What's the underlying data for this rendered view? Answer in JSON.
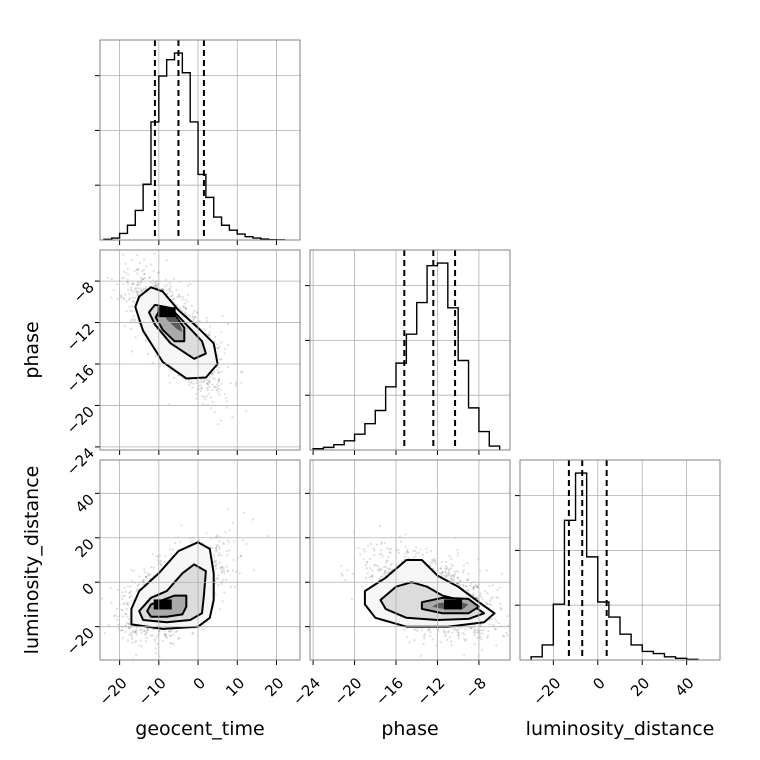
{
  "chart_data": {
    "type": "corner",
    "parameters": [
      {
        "name": "geocent_time",
        "range": [
          -25,
          26
        ],
        "ticks": [
          -20,
          -10,
          0,
          10,
          20
        ],
        "ticklabels": [
          "−20",
          "−10",
          "0",
          "10",
          "20"
        ]
      },
      {
        "name": "phase",
        "range": [
          -24.3,
          -5.0
        ],
        "ticks": [
          -24,
          -20,
          -16,
          -12,
          -8
        ],
        "ticklabels": [
          "−24",
          "−20",
          "−16",
          "−12",
          "−8"
        ]
      },
      {
        "name": "luminosity_distance",
        "range": [
          -35,
          55
        ],
        "ticks": [
          -20,
          0,
          20,
          40
        ],
        "ticklabels": [
          "−20",
          "0",
          "20",
          "40"
        ]
      }
    ],
    "axis_labels": {
      "x": [
        "geocent_time",
        "phase",
        "luminosity_distance"
      ],
      "y": [
        "phase",
        "luminosity_distance"
      ]
    },
    "grid": true,
    "quantiles": [
      0.16,
      0.5,
      0.84
    ],
    "histograms": [
      {
        "parameter": "geocent_time",
        "bin_edges": [
          -24,
          -22,
          -20,
          -18,
          -16,
          -14,
          -12,
          -10,
          -8,
          -6,
          -4,
          -2,
          0,
          2,
          4,
          6,
          8,
          10,
          12,
          14,
          16,
          18,
          20,
          22
        ],
        "counts": [
          0.2,
          0.6,
          2.0,
          4.5,
          9.0,
          17.0,
          36.0,
          50.0,
          55.0,
          57.0,
          51.0,
          36.0,
          20.0,
          13.0,
          7.0,
          4.5,
          3.0,
          1.8,
          1.0,
          0.6,
          0.3,
          0.1,
          0.05
        ],
        "quantile_values": [
          -11,
          -5,
          1.5
        ]
      },
      {
        "parameter": "phase",
        "bin_edges": [
          -24,
          -23,
          -22,
          -21,
          -20,
          -19,
          -18,
          -17,
          -16,
          -15,
          -14,
          -13,
          -12,
          -11,
          -10,
          -9,
          -8,
          -7,
          -6
        ],
        "counts": [
          0.5,
          1.0,
          2.0,
          3.5,
          6.0,
          10.0,
          15.0,
          24.0,
          33.0,
          44.0,
          56.0,
          70.0,
          71.0,
          54.0,
          34.0,
          16.0,
          7.0,
          1.5
        ],
        "quantile_values": [
          -15.2,
          -12.4,
          -10.3
        ]
      },
      {
        "parameter": "luminosity_distance",
        "bin_edges": [
          -30,
          -25,
          -20,
          -15,
          -10,
          -5,
          0,
          5,
          10,
          15,
          20,
          25,
          30,
          35,
          40,
          45
        ],
        "counts": [
          1.5,
          7.0,
          26.0,
          65.0,
          87.0,
          48.0,
          27.0,
          20.0,
          12.0,
          7.0,
          4.0,
          3.0,
          1.5,
          0.8,
          0.3
        ],
        "quantile_values": [
          -13,
          -7,
          4
        ]
      }
    ],
    "pairs": [
      {
        "x": "geocent_time",
        "y": "phase",
        "mean": [
          -6,
          -12.8
        ],
        "sd": [
          5.5,
          2.6
        ],
        "corr": -0.7,
        "peak": [
          -8,
          -11
        ],
        "contours": [
          [
            [
              -15,
              -9.5
            ],
            [
              -12,
              -8.6
            ],
            [
              -9,
              -9.0
            ],
            [
              -5,
              -10.8
            ],
            [
              0,
              -12.5
            ],
            [
              4,
              -14.0
            ],
            [
              5,
              -16.0
            ],
            [
              2,
              -17.3
            ],
            [
              -3,
              -17.4
            ],
            [
              -9,
              -15.8
            ],
            [
              -14,
              -12.8
            ],
            [
              -16,
              -10.5
            ]
          ],
          [
            [
              -11,
              -10.3
            ],
            [
              -7,
              -10.6
            ],
            [
              -3,
              -12.2
            ],
            [
              1,
              -13.8
            ],
            [
              2,
              -15.0
            ],
            [
              -1,
              -15.5
            ],
            [
              -7,
              -14.0
            ],
            [
              -11,
              -12.2
            ],
            [
              -12.5,
              -11.0
            ]
          ],
          [
            [
              -9.5,
              -10.6
            ],
            [
              -6.5,
              -11.0
            ],
            [
              -3.5,
              -12.5
            ],
            [
              -3.5,
              -13.8
            ],
            [
              -6,
              -13.8
            ],
            [
              -9,
              -12.7
            ],
            [
              -10.8,
              -11.5
            ]
          ],
          [
            [
              -9,
              -10.9
            ],
            [
              -7,
              -11.0
            ],
            [
              -5,
              -11.8
            ],
            [
              -4,
              -12.9
            ],
            [
              -5.5,
              -12.6
            ],
            [
              -8,
              -11.7
            ]
          ]
        ]
      },
      {
        "x": "geocent_time",
        "y": "luminosity_distance",
        "mean": [
          -6,
          -6
        ],
        "sd": [
          6.0,
          9.0
        ],
        "corr": 0.45,
        "peak": [
          -9,
          -10
        ],
        "contours": [
          [
            [
              -17,
              -12
            ],
            [
              -17,
              -19
            ],
            [
              -9,
              -21
            ],
            [
              0,
              -20
            ],
            [
              3,
              -16
            ],
            [
              4,
              -8
            ],
            [
              4,
              4
            ],
            [
              3,
              15
            ],
            [
              0,
              18
            ],
            [
              -5,
              14
            ],
            [
              -10,
              4
            ],
            [
              -15,
              -4
            ]
          ],
          [
            [
              -15,
              -13
            ],
            [
              -14,
              -17
            ],
            [
              -8,
              -18
            ],
            [
              -2,
              -17
            ],
            [
              1,
              -14
            ],
            [
              1.5,
              -6
            ],
            [
              2,
              5
            ],
            [
              -1,
              8
            ],
            [
              -4,
              4
            ],
            [
              -8,
              -4
            ],
            [
              -12,
              -7
            ]
          ],
          [
            [
              -13,
              -13
            ],
            [
              -12,
              -15.5
            ],
            [
              -8,
              -15.5
            ],
            [
              -4,
              -14.5
            ],
            [
              -3,
              -11
            ],
            [
              -3,
              -6
            ],
            [
              -6,
              -6
            ],
            [
              -9,
              -8
            ],
            [
              -12,
              -10
            ]
          ],
          [
            [
              -11,
              -12
            ],
            [
              -9,
              -12
            ],
            [
              -7,
              -11
            ],
            [
              -7.5,
              -9
            ],
            [
              -9.5,
              -9
            ],
            [
              -11,
              -10
            ]
          ]
        ]
      },
      {
        "x": "phase",
        "y": "luminosity_distance",
        "mean": [
          -12.5,
          -6
        ],
        "sd": [
          2.8,
          9.0
        ],
        "corr": -0.45,
        "peak": [
          -10.5,
          -10
        ],
        "contours": [
          [
            [
              -19,
              -10
            ],
            [
              -19,
              -4
            ],
            [
              -17,
              2
            ],
            [
              -15,
              10
            ],
            [
              -13.5,
              10
            ],
            [
              -12,
              3
            ],
            [
              -10,
              -2
            ],
            [
              -8,
              -9
            ],
            [
              -6.5,
              -14
            ],
            [
              -7.5,
              -18
            ],
            [
              -11,
              -20
            ],
            [
              -15,
              -20
            ],
            [
              -18,
              -16
            ]
          ],
          [
            [
              -17.5,
              -8
            ],
            [
              -16,
              -2
            ],
            [
              -14.5,
              0
            ],
            [
              -13,
              -2
            ],
            [
              -11.5,
              -6
            ],
            [
              -9,
              -9
            ],
            [
              -7.5,
              -14
            ],
            [
              -9,
              -16.5
            ],
            [
              -12,
              -17
            ],
            [
              -15,
              -16
            ],
            [
              -17,
              -12
            ]
          ],
          [
            [
              -13.5,
              -9
            ],
            [
              -11.5,
              -7
            ],
            [
              -9,
              -7.5
            ],
            [
              -8,
              -11
            ],
            [
              -9,
              -14
            ],
            [
              -11.5,
              -14
            ],
            [
              -13.5,
              -12
            ]
          ],
          [
            [
              -12,
              -9.5
            ],
            [
              -10,
              -8.5
            ],
            [
              -9,
              -10
            ],
            [
              -9.5,
              -12
            ],
            [
              -11.5,
              -12
            ],
            [
              -12.5,
              -11
            ]
          ]
        ]
      }
    ]
  }
}
